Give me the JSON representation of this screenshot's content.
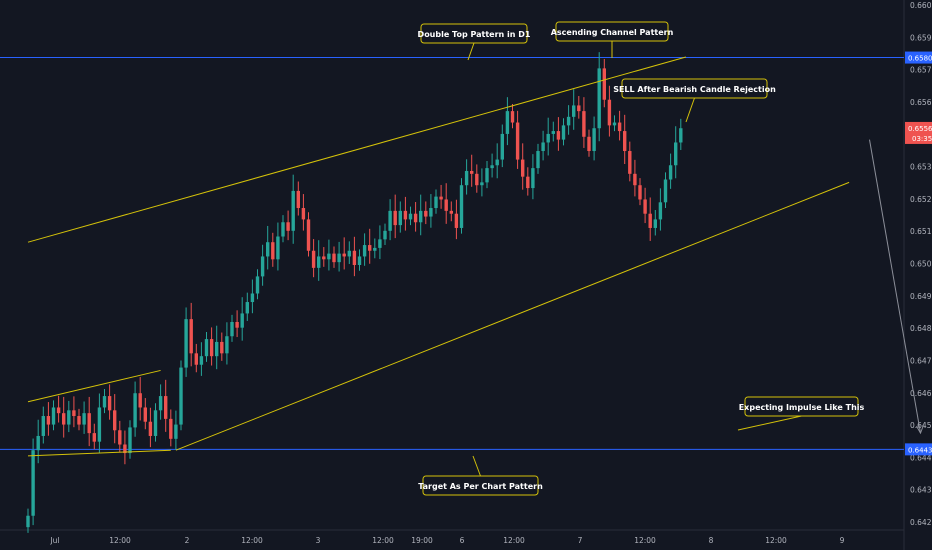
{
  "chart_data": {
    "type": "candlestick",
    "y_axis": {
      "ylim": [
        0.6415,
        0.6601
      ],
      "ticks": [
        "0.66000",
        "0.65900",
        "0.65700",
        "0.65600",
        "0.65400",
        "0.65300",
        "0.65200",
        "0.65100",
        "0.65000",
        "0.64900",
        "0.64800",
        "0.64700",
        "0.64600",
        "0.64500",
        "0.64400",
        "0.64300",
        "0.64200"
      ]
    },
    "x_axis": {
      "ticks": [
        "Jul",
        "12:00",
        "2",
        "12:00",
        "3",
        "12:00",
        "19:00",
        "6",
        "12:00",
        "7",
        "12:00",
        "8",
        "12:00",
        "9"
      ]
    },
    "colors": {
      "up": "#26a69a",
      "down": "#ef5350",
      "pattern": "#d4c20a",
      "level": "#2962ff",
      "background": "#131722",
      "arrow": "#8c8f99"
    },
    "levels": [
      {
        "value": 0.65808,
        "label": "0.65808"
      },
      {
        "value": 0.64433,
        "label": "0.64433"
      }
    ],
    "current_price": {
      "value": 0.65561,
      "label": "0.65561",
      "countdown": "03:35"
    },
    "annotations": [
      {
        "text": "Double Top Pattern in D1"
      },
      {
        "text": "Ascending Channel Pattern"
      },
      {
        "text": "SELL After Bearish Candle Rejection"
      },
      {
        "text": "Expecting Impulse Like This"
      },
      {
        "text": "Target As Per Chart Pattern"
      }
    ],
    "candles_close": [
      0.642,
      0.6443,
      0.6448,
      0.6455,
      0.6452,
      0.6458,
      0.6456,
      0.6452,
      0.6457,
      0.6455,
      0.6452,
      0.6456,
      0.6449,
      0.6446,
      0.6458,
      0.6462,
      0.6457,
      0.645,
      0.6445,
      0.6442,
      0.6451,
      0.6463,
      0.6458,
      0.6453,
      0.6448,
      0.6457,
      0.6462,
      0.6454,
      0.6447,
      0.6452,
      0.6472,
      0.6489,
      0.6477,
      0.6473,
      0.6476,
      0.6482,
      0.6476,
      0.6481,
      0.6477,
      0.6483,
      0.6488,
      0.6486,
      0.6491,
      0.6495,
      0.6498,
      0.6504,
      0.6511,
      0.6516,
      0.651,
      0.6518,
      0.6523,
      0.652,
      0.6534,
      0.6528,
      0.6524,
      0.6513,
      0.6507,
      0.6511,
      0.651,
      0.6512,
      0.6509,
      0.6512,
      0.6511,
      0.6513,
      0.6508,
      0.6511,
      0.6515,
      0.6513,
      0.6514,
      0.6517,
      0.652,
      0.6527,
      0.6522,
      0.6527,
      0.6524,
      0.6526,
      0.6523,
      0.6527,
      0.6525,
      0.6528,
      0.6532,
      0.6531,
      0.6527,
      0.6526,
      0.6521,
      0.6536,
      0.6541,
      0.654,
      0.6536,
      0.6537,
      0.6542,
      0.6543,
      0.6545,
      0.6554,
      0.6562,
      0.6558,
      0.6545,
      0.6539,
      0.6535,
      0.6542,
      0.6548,
      0.6551,
      0.6554,
      0.6555,
      0.6552,
      0.6557,
      0.656,
      0.6564,
      0.6562,
      0.6553,
      0.6548,
      0.6556,
      0.6577,
      0.6566,
      0.6557,
      0.6558,
      0.6555,
      0.6548,
      0.654,
      0.6536,
      0.6531,
      0.6526,
      0.6521,
      0.6524,
      0.653,
      0.6538,
      0.6543,
      0.6551,
      0.6556
    ],
    "channel": {
      "upper": {
        "from": [
          0,
          0.6516
        ],
        "to": [
          129,
          0.6581
        ]
      },
      "lower": {
        "from": [
          29,
          0.6443
        ],
        "to": [
          161,
          0.6537
        ]
      }
    },
    "flag": {
      "upper": {
        "from": [
          0,
          0.646
        ],
        "to": [
          26,
          0.6471
        ]
      },
      "lower": {
        "from": [
          0,
          0.6441
        ],
        "to": [
          28,
          0.6443
        ]
      }
    },
    "projection": {
      "from": [
        165,
        0.6552
      ],
      "to": [
        175,
        0.6449
      ]
    }
  }
}
